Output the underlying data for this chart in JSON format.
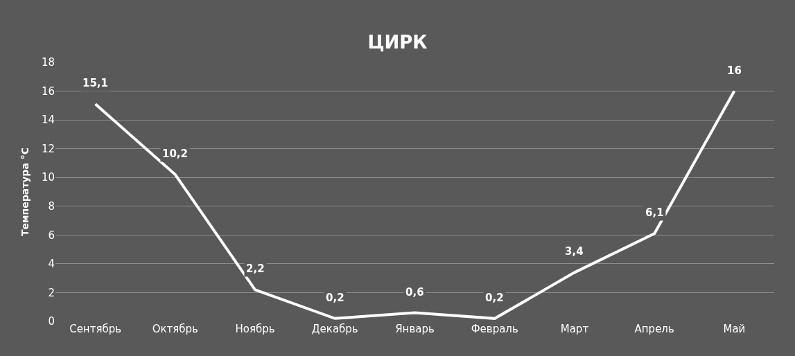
{
  "chart_data": {
    "type": "line",
    "title": "ЦИРК",
    "ylabel": "Температура °C",
    "categories": [
      "Сентябрь",
      "Октябрь",
      "Ноябрь",
      "Декабрь",
      "Январь",
      "Февраль",
      "Март",
      "Апрель",
      "Май"
    ],
    "series": [
      {
        "color": "#ffffff",
        "values": [
          15.1,
          10.2,
          2.2,
          0.2,
          0.6,
          0.2,
          3.4,
          6.1,
          16
        ],
        "value_labels": [
          "15,1",
          "10,2",
          "2,2",
          "0,2",
          "0,6",
          "0,2",
          "3,4",
          "6,1",
          "16"
        ]
      }
    ],
    "ylim": [
      0,
      18
    ],
    "yticks": [
      0,
      2,
      4,
      6,
      8,
      10,
      12,
      14,
      16,
      18
    ],
    "grid": "y",
    "marker": "none",
    "line_style": "solid"
  }
}
